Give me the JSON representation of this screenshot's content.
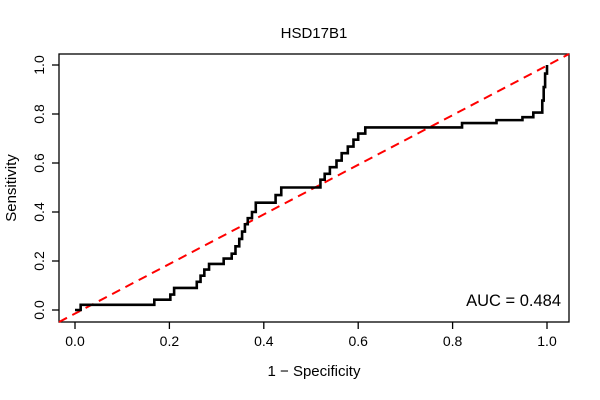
{
  "chart_data": {
    "type": "line",
    "subtype": "roc-step-curve",
    "title": "HSD17B1",
    "xlabel": "1 − Specificity",
    "ylabel": "Sensitivity",
    "xlim": [
      0,
      1
    ],
    "ylim": [
      0,
      1
    ],
    "grid": false,
    "legend": null,
    "x_ticks": [
      0.0,
      0.2,
      0.4,
      0.6,
      0.8,
      1.0
    ],
    "x_tick_labels": [
      "0.0",
      "0.2",
      "0.4",
      "0.6",
      "0.8",
      "1.0"
    ],
    "y_ticks": [
      0.0,
      0.2,
      0.4,
      0.6,
      0.8,
      1.0
    ],
    "y_tick_labels": [
      "0.0",
      "0.2",
      "0.4",
      "0.6",
      "0.8",
      "1.0"
    ],
    "annotation": {
      "text": "AUC = 0.484",
      "value": 0.484,
      "position": "bottom-right",
      "color": "#000000"
    },
    "series": [
      {
        "name": "ROC curve",
        "style": "step",
        "color": "#000000",
        "line_width": 2.6,
        "dash": null,
        "step_knots": [
          [
            0.0,
            0.0
          ],
          [
            0.012,
            0.021
          ],
          [
            0.168,
            0.042
          ],
          [
            0.202,
            0.063
          ],
          [
            0.21,
            0.09
          ],
          [
            0.258,
            0.115
          ],
          [
            0.266,
            0.14
          ],
          [
            0.274,
            0.165
          ],
          [
            0.284,
            0.188
          ],
          [
            0.315,
            0.21
          ],
          [
            0.332,
            0.23
          ],
          [
            0.34,
            0.26
          ],
          [
            0.348,
            0.29
          ],
          [
            0.354,
            0.32
          ],
          [
            0.36,
            0.35
          ],
          [
            0.366,
            0.375
          ],
          [
            0.375,
            0.4
          ],
          [
            0.383,
            0.438
          ],
          [
            0.425,
            0.469
          ],
          [
            0.437,
            0.5
          ],
          [
            0.52,
            0.532
          ],
          [
            0.529,
            0.556
          ],
          [
            0.54,
            0.583
          ],
          [
            0.554,
            0.61
          ],
          [
            0.565,
            0.64
          ],
          [
            0.578,
            0.667
          ],
          [
            0.59,
            0.695
          ],
          [
            0.6,
            0.72
          ],
          [
            0.615,
            0.745
          ],
          [
            0.82,
            0.763
          ],
          [
            0.893,
            0.775
          ],
          [
            0.948,
            0.787
          ],
          [
            0.971,
            0.806
          ],
          [
            0.99,
            0.855
          ],
          [
            0.993,
            0.91
          ],
          [
            0.996,
            0.965
          ],
          [
            1.0,
            1.0
          ]
        ]
      },
      {
        "name": "Reference diagonal",
        "style": "line",
        "color": "#FF0000",
        "line_width": 2,
        "dash": "9,6",
        "points": [
          [
            0,
            0
          ],
          [
            1,
            1
          ]
        ]
      }
    ],
    "frame_color": "#000000",
    "background_color": "#ffffff"
  }
}
